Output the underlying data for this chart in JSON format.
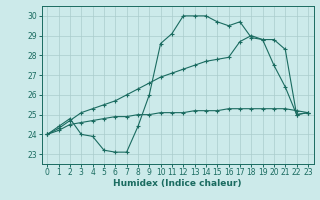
{
  "xlabel": "Humidex (Indice chaleur)",
  "bg_color": "#cceaea",
  "grid_color": "#aacccc",
  "line_color": "#1a6b60",
  "xlim": [
    -0.5,
    23.5
  ],
  "ylim": [
    22.5,
    30.5
  ],
  "xticks": [
    0,
    1,
    2,
    3,
    4,
    5,
    6,
    7,
    8,
    9,
    10,
    11,
    12,
    13,
    14,
    15,
    16,
    17,
    18,
    19,
    20,
    21,
    22,
    23
  ],
  "yticks": [
    23,
    24,
    25,
    26,
    27,
    28,
    29,
    30
  ],
  "line1_x": [
    0,
    1,
    2,
    3,
    4,
    5,
    6,
    7,
    8,
    9,
    10,
    11,
    12,
    13,
    14,
    15,
    16,
    17,
    18,
    19,
    20,
    21,
    22,
    23
  ],
  "line1_y": [
    24.0,
    24.4,
    24.8,
    24.0,
    23.9,
    23.2,
    23.1,
    23.1,
    24.4,
    26.0,
    28.6,
    29.1,
    30.0,
    30.0,
    30.0,
    29.7,
    29.5,
    29.7,
    28.9,
    28.8,
    27.5,
    26.4,
    25.0,
    25.1
  ],
  "line2_x": [
    0,
    1,
    2,
    3,
    4,
    5,
    6,
    7,
    8,
    9,
    10,
    11,
    12,
    13,
    14,
    15,
    16,
    17,
    18,
    19,
    20,
    21,
    22,
    23
  ],
  "line2_y": [
    24.0,
    24.3,
    24.7,
    25.1,
    25.3,
    25.5,
    25.7,
    26.0,
    26.3,
    26.6,
    26.9,
    27.1,
    27.3,
    27.5,
    27.7,
    27.8,
    27.9,
    28.7,
    29.0,
    28.8,
    28.8,
    28.3,
    25.0,
    25.1
  ],
  "line3_x": [
    0,
    1,
    2,
    3,
    4,
    5,
    6,
    7,
    8,
    9,
    10,
    11,
    12,
    13,
    14,
    15,
    16,
    17,
    18,
    19,
    20,
    21,
    22,
    23
  ],
  "line3_y": [
    24.0,
    24.2,
    24.5,
    24.6,
    24.7,
    24.8,
    24.9,
    24.9,
    25.0,
    25.0,
    25.1,
    25.1,
    25.1,
    25.2,
    25.2,
    25.2,
    25.3,
    25.3,
    25.3,
    25.3,
    25.3,
    25.3,
    25.2,
    25.1
  ]
}
